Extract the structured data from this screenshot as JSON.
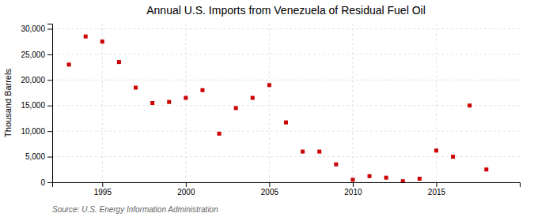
{
  "chart_data": {
    "type": "scatter",
    "title": "Annual U.S. Imports from Venezuela of Residual Fuel Oil",
    "ylabel": "Thousand Barrels",
    "annotations": [
      "Source: U.S. Energy Information Administration"
    ],
    "x": [
      1993,
      1994,
      1995,
      1996,
      1997,
      1998,
      1999,
      2000,
      2001,
      2002,
      2003,
      2004,
      2005,
      2006,
      2007,
      2008,
      2009,
      2010,
      2011,
      2012,
      2013,
      2014,
      2015,
      2016,
      2017,
      2018
    ],
    "values": [
      23000,
      28500,
      27500,
      23500,
      18500,
      15500,
      15700,
      16500,
      18000,
      9500,
      14500,
      16500,
      19000,
      11700,
      6000,
      6000,
      3500,
      500,
      1200,
      900,
      200,
      700,
      6200,
      5000,
      15000,
      2500
    ],
    "color": "#cc0000",
    "marker": "square",
    "xlim": [
      1992,
      2020
    ],
    "ylim": [
      0,
      31000
    ],
    "xticks": [
      1995,
      2000,
      2005,
      2010,
      2015
    ],
    "yticks": [
      0,
      {
        "value": 5000,
        "label": "5,000"
      },
      {
        "value": 10000,
        "label": "10,000"
      },
      {
        "value": 15000,
        "label": "15,000"
      },
      {
        "value": 20000,
        "label": "20,000"
      },
      {
        "value": 25000,
        "label": "25,000"
      },
      {
        "value": 30000,
        "label": "30,000"
      }
    ],
    "grid": true
  }
}
